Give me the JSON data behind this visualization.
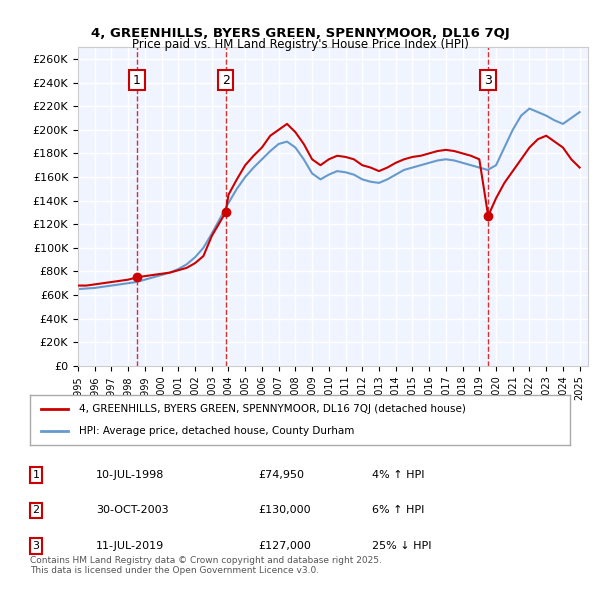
{
  "title1": "4, GREENHILLS, BYERS GREEN, SPENNYMOOR, DL16 7QJ",
  "title2": "Price paid vs. HM Land Registry's House Price Index (HPI)",
  "legend_property": "4, GREENHILLS, BYERS GREEN, SPENNYMOOR, DL16 7QJ (detached house)",
  "legend_hpi": "HPI: Average price, detached house, County Durham",
  "footnote": "Contains HM Land Registry data © Crown copyright and database right 2025.\nThis data is licensed under the Open Government Licence v3.0.",
  "transactions": [
    {
      "num": 1,
      "date": "10-JUL-1998",
      "price": "£74,950",
      "hpi_change": "4% ↑ HPI",
      "year": 1998.53
    },
    {
      "num": 2,
      "date": "30-OCT-2003",
      "price": "£130,000",
      "hpi_change": "6% ↑ HPI",
      "year": 2003.83
    },
    {
      "num": 3,
      "date": "11-JUL-2019",
      "price": "£127,000",
      "hpi_change": "25% ↓ HPI",
      "year": 2019.53
    }
  ],
  "property_color": "#cc0000",
  "hpi_color": "#6699cc",
  "vline_color": "#cc0000",
  "marker_box_color": "#cc0000",
  "ylim": [
    0,
    270000
  ],
  "yticks": [
    0,
    20000,
    40000,
    60000,
    80000,
    100000,
    120000,
    140000,
    160000,
    180000,
    200000,
    220000,
    240000,
    260000
  ],
  "xlim_start": 1995.0,
  "xlim_end": 2025.5,
  "background_color": "#ffffff",
  "plot_bg_color": "#f0f4ff",
  "grid_color": "#ffffff",
  "property_prices_x": [
    1995.0,
    1995.5,
    1996.0,
    1996.5,
    1997.0,
    1997.5,
    1998.0,
    1998.53,
    1999.0,
    1999.5,
    2000.0,
    2000.5,
    2001.0,
    2001.5,
    2002.0,
    2002.5,
    2003.0,
    2003.83,
    2004.0,
    2004.5,
    2005.0,
    2005.5,
    2006.0,
    2006.5,
    2007.0,
    2007.5,
    2008.0,
    2008.5,
    2009.0,
    2009.5,
    2010.0,
    2010.5,
    2011.0,
    2011.5,
    2012.0,
    2012.5,
    2013.0,
    2013.5,
    2014.0,
    2014.5,
    2015.0,
    2015.5,
    2016.0,
    2016.5,
    2017.0,
    2017.5,
    2018.0,
    2018.5,
    2019.0,
    2019.53,
    2020.0,
    2020.5,
    2021.0,
    2021.5,
    2022.0,
    2022.5,
    2023.0,
    2023.5,
    2024.0,
    2024.5,
    2025.0
  ],
  "hpi_x": [
    1995.0,
    1995.5,
    1996.0,
    1996.5,
    1997.0,
    1997.5,
    1998.0,
    1998.5,
    1999.0,
    1999.5,
    2000.0,
    2000.5,
    2001.0,
    2001.5,
    2002.0,
    2002.5,
    2003.0,
    2003.5,
    2004.0,
    2004.5,
    2005.0,
    2005.5,
    2006.0,
    2006.5,
    2007.0,
    2007.5,
    2008.0,
    2008.5,
    2009.0,
    2009.5,
    2010.0,
    2010.5,
    2011.0,
    2011.5,
    2012.0,
    2012.5,
    2013.0,
    2013.5,
    2014.0,
    2014.5,
    2015.0,
    2015.5,
    2016.0,
    2016.5,
    2017.0,
    2017.5,
    2018.0,
    2018.5,
    2019.0,
    2019.5,
    2020.0,
    2020.5,
    2021.0,
    2021.5,
    2022.0,
    2022.5,
    2023.0,
    2023.5,
    2024.0,
    2024.5,
    2025.0
  ],
  "property_prices_y": [
    68000,
    68000,
    69000,
    70000,
    71000,
    72000,
    73000,
    74950,
    76000,
    77000,
    78000,
    79000,
    81000,
    83000,
    87000,
    93000,
    110000,
    130000,
    145000,
    158000,
    170000,
    178000,
    185000,
    195000,
    200000,
    205000,
    198000,
    188000,
    175000,
    170000,
    175000,
    178000,
    177000,
    175000,
    170000,
    168000,
    165000,
    168000,
    172000,
    175000,
    177000,
    178000,
    180000,
    182000,
    183000,
    182000,
    180000,
    178000,
    175000,
    127000,
    142000,
    155000,
    165000,
    175000,
    185000,
    192000,
    195000,
    190000,
    185000,
    175000,
    168000
  ],
  "hpi_y": [
    65000,
    65500,
    66000,
    67000,
    68000,
    69000,
    70000,
    71000,
    73000,
    75000,
    77000,
    79000,
    82000,
    86000,
    92000,
    100000,
    112000,
    125000,
    138000,
    150000,
    160000,
    168000,
    175000,
    182000,
    188000,
    190000,
    185000,
    175000,
    163000,
    158000,
    162000,
    165000,
    164000,
    162000,
    158000,
    156000,
    155000,
    158000,
    162000,
    166000,
    168000,
    170000,
    172000,
    174000,
    175000,
    174000,
    172000,
    170000,
    168000,
    166000,
    170000,
    185000,
    200000,
    212000,
    218000,
    215000,
    212000,
    208000,
    205000,
    210000,
    215000
  ]
}
